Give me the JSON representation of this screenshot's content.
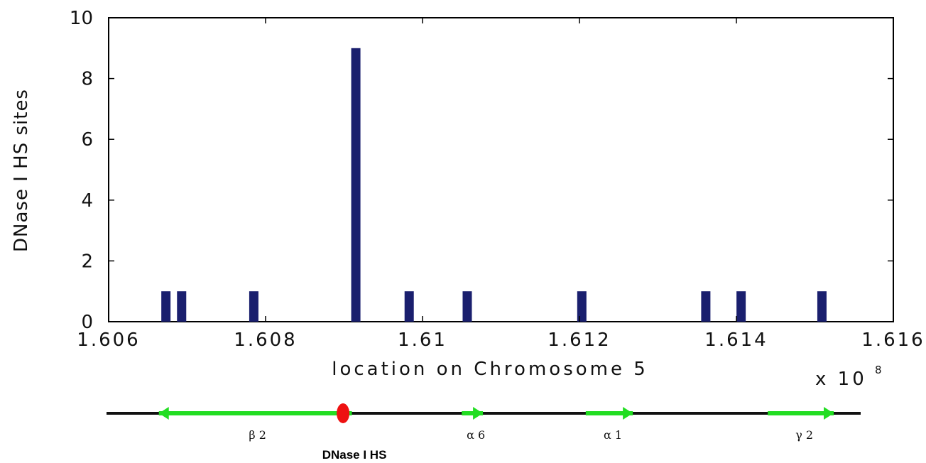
{
  "chart_data": {
    "type": "bar",
    "ylabel": "DNase I HS sites",
    "xlabel": "location on Chromosome 5",
    "x_multiplier": "x 10",
    "x_exponent": "8",
    "xlim": [
      1.606,
      1.616
    ],
    "ylim": [
      0,
      10
    ],
    "x_ticks": [
      1.606,
      1.608,
      1.61,
      1.612,
      1.614,
      1.616
    ],
    "x_tick_labels": [
      "1.606",
      "1.608",
      "1.61",
      "1.612",
      "1.614",
      "1.616"
    ],
    "y_ticks": [
      0,
      2,
      4,
      6,
      8,
      10
    ],
    "y_tick_labels": [
      "0",
      "2",
      "4",
      "6",
      "8",
      "10"
    ],
    "bar_color": "#1a1f6e",
    "bars": [
      {
        "x": 1.60673,
        "y": 1
      },
      {
        "x": 1.60693,
        "y": 1
      },
      {
        "x": 1.60785,
        "y": 1
      },
      {
        "x": 1.60915,
        "y": 9
      },
      {
        "x": 1.60983,
        "y": 1
      },
      {
        "x": 1.61057,
        "y": 1
      },
      {
        "x": 1.61203,
        "y": 1
      },
      {
        "x": 1.61361,
        "y": 1
      },
      {
        "x": 1.61406,
        "y": 1
      },
      {
        "x": 1.61509,
        "y": 1
      }
    ],
    "grid": false
  },
  "gene_map": {
    "backbone_color": "#111111",
    "gene_color": "#22dd22",
    "marker_color": "#ee1111",
    "genes": [
      {
        "label": "β 2",
        "start": 1.60664,
        "end": 1.6091,
        "direction": "left"
      },
      {
        "label": "α 6",
        "start": 1.6105,
        "end": 1.61077,
        "direction": "right"
      },
      {
        "label": "α 1",
        "start": 1.61208,
        "end": 1.61268,
        "direction": "right"
      },
      {
        "label": "γ 2",
        "start": 1.6144,
        "end": 1.61524,
        "direction": "right"
      }
    ],
    "marker": {
      "label": "DNase I HS",
      "x": 1.60915
    }
  }
}
